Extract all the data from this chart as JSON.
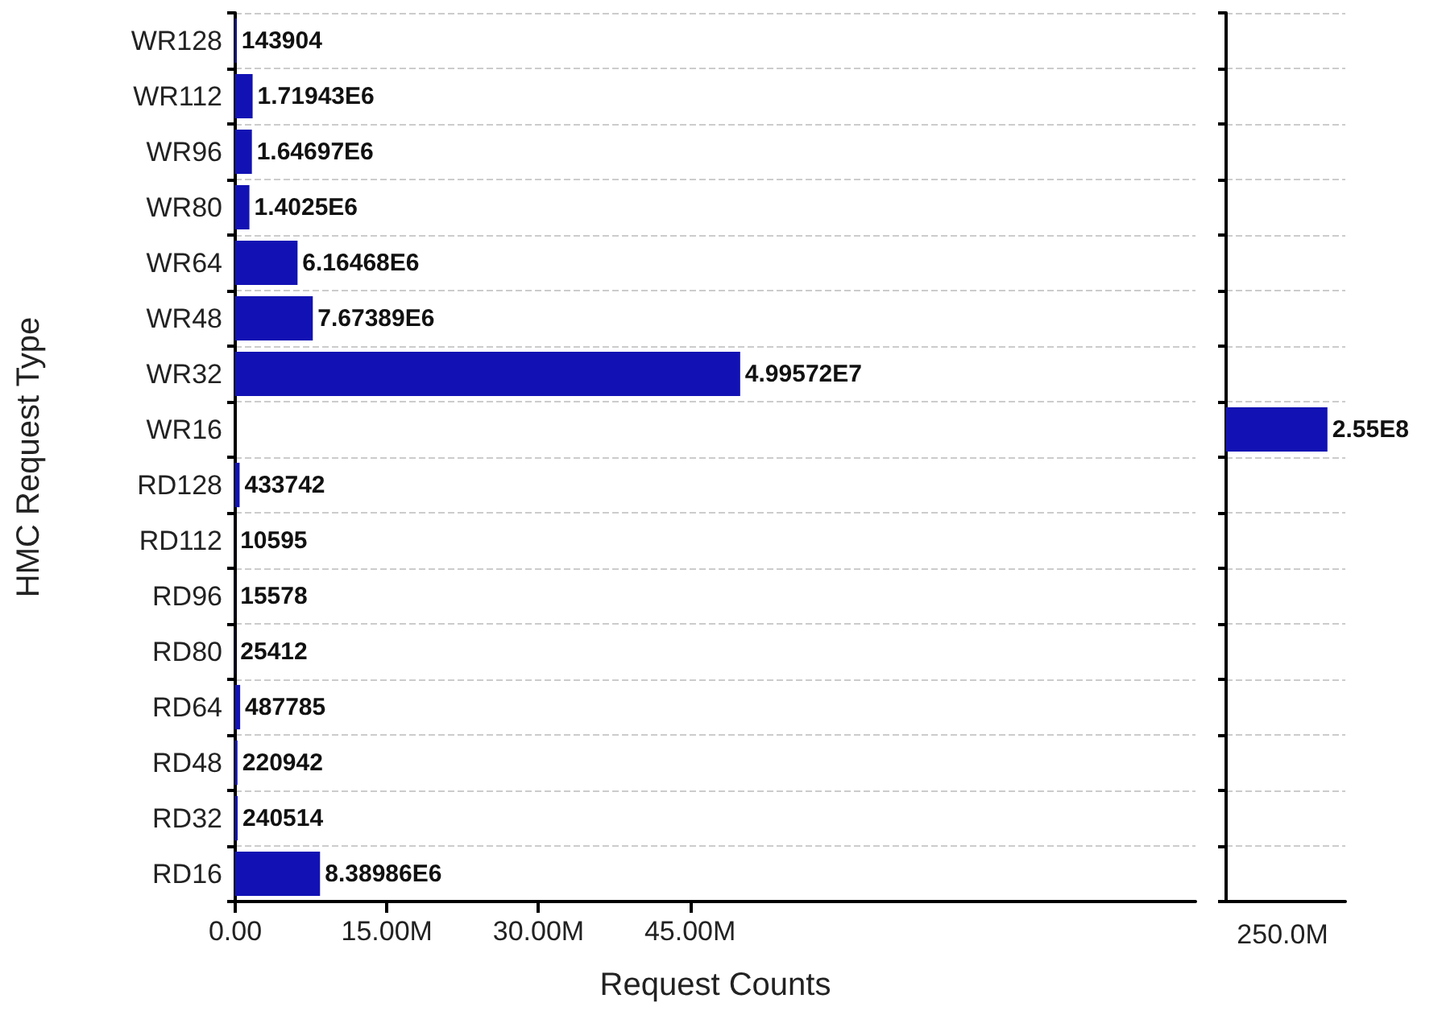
{
  "chart_data": [
    {
      "type": "bar",
      "orientation": "horizontal",
      "xlabel": "Request Counts",
      "ylabel": "HMC Request Type",
      "categories": [
        "WR128",
        "WR112",
        "WR96",
        "WR80",
        "WR64",
        "WR48",
        "WR32",
        "WR16",
        "RD128",
        "RD112",
        "RD96",
        "RD80",
        "RD64",
        "RD48",
        "RD32",
        "RD16"
      ],
      "values": [
        143904,
        1719430,
        1646970,
        1402500,
        6164680,
        7673890,
        49957200,
        null,
        433742,
        10595,
        15578,
        25412,
        487785,
        220942,
        240514,
        8389860
      ],
      "value_labels": [
        "143904",
        "1.71943E6",
        "1.64697E6",
        "1.4025E6",
        "6.16468E6",
        "7.67389E6",
        "4.99572E7",
        null,
        "433742",
        "10595",
        "15578",
        "25412",
        "487785",
        "220942",
        "240514",
        "8.38986E6"
      ],
      "color": "#1212b4",
      "xlim": [
        0,
        95000000
      ],
      "xticks": [
        {
          "value": 0,
          "label": "0.00"
        },
        {
          "value": 15000000,
          "label": "15.00M"
        },
        {
          "value": 30000000,
          "label": "30.00M"
        },
        {
          "value": 45000000,
          "label": "45.00M"
        }
      ],
      "grid": "y"
    },
    {
      "type": "bar",
      "orientation": "horizontal",
      "categories": [
        null,
        null,
        null,
        null,
        null,
        null,
        null,
        null,
        null,
        null,
        null,
        null,
        null,
        null,
        null,
        null
      ],
      "values": [
        null,
        null,
        null,
        null,
        null,
        null,
        null,
        255000000,
        null,
        null,
        null,
        null,
        null,
        null,
        null,
        null
      ],
      "value_labels": [
        null,
        null,
        null,
        null,
        null,
        null,
        null,
        "2.55E8",
        null,
        null,
        null,
        null,
        null,
        null,
        null,
        null
      ],
      "color": "#1212b4",
      "annotations": [
        "250.0M"
      ],
      "grid": "y"
    }
  ]
}
